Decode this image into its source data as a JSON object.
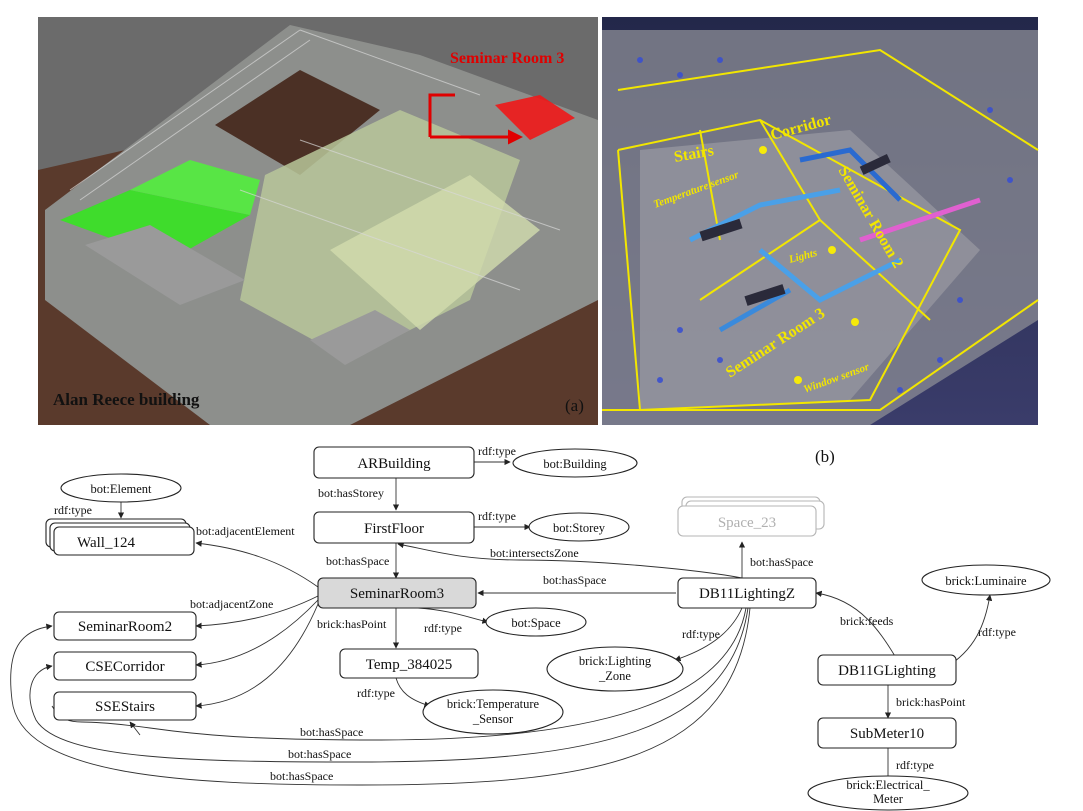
{
  "panel_a": {
    "caption": "Alan Reece building",
    "callout": "Seminar Room 3",
    "letter": "(a)"
  },
  "panel_b": {
    "letter": "(b)",
    "labels": {
      "stairs": "Stairs",
      "corridor": "Corridor",
      "seminar2": "Seminar Room 2",
      "seminar3": "Seminar Room 3",
      "temperature": "Temperature sensor",
      "lights": "Lights",
      "window": "Window sensor"
    }
  },
  "graph": {
    "nodes": {
      "arbuilding": "ARBuilding",
      "firstfloor": "FirstFloor",
      "wall": "Wall_124",
      "space23": "Space_23",
      "seminarroom3": "SeminarRoom3",
      "db11lightingz": "DB11LightingZ",
      "seminarroom2": "SeminarRoom2",
      "csecorridor": "CSECorridor",
      "ssestairs": "SSEStairs",
      "temp": "Temp_384025",
      "db11glighting": "DB11GLighting",
      "submeter": "SubMeter10"
    },
    "classes": {
      "building": "bot:Building",
      "element": "bot:Element",
      "storey": "bot:Storey",
      "space": "bot:Space",
      "luminaire": "brick:Luminaire",
      "lighting_zone_1": "brick:Lighting",
      "lighting_zone_2": "_Zone",
      "temp_sensor_1": "brick:Temperature",
      "temp_sensor_2": "_Sensor",
      "meter_1": "brick:Electrical_",
      "meter_2": "Meter"
    },
    "edges": {
      "rdftype": "rdf:type",
      "hasstorey": "bot:hasStorey",
      "hasspace": "bot:hasSpace",
      "adjacentelement": "bot:adjacentElement",
      "adjacentzone": "bot:adjacentZone",
      "intersectszone": "bot:intersectsZone",
      "haspoint_brick": "brick:hasPoint",
      "feeds": "brick:feeds"
    }
  }
}
